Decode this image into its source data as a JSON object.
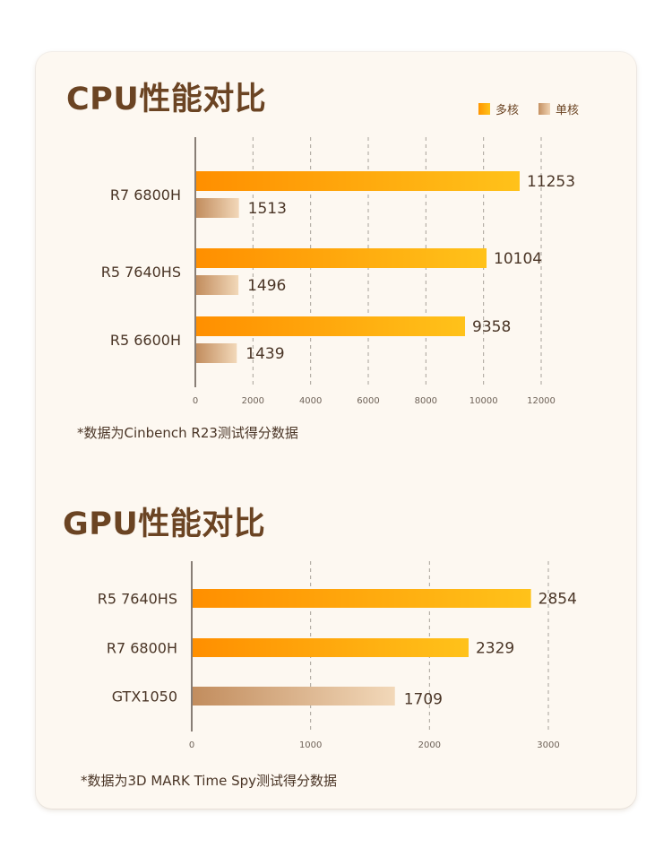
{
  "cpu": {
    "title": "CPU性能对比",
    "legend": [
      {
        "name": "多核",
        "color": "#ff9f0a"
      },
      {
        "name": "单核",
        "color": "#d9a77a"
      }
    ],
    "note": "*数据为Cinbench R23测试得分数据"
  },
  "gpu": {
    "title": "GPU性能对比",
    "note": "*数据为3D MARK Time Spy测试得分数据"
  },
  "chart_data": [
    {
      "type": "bar",
      "orientation": "horizontal",
      "title": "CPU性能对比",
      "categories": [
        "R7 6800H",
        "R5 7640HS",
        "R5 6600H"
      ],
      "series": [
        {
          "name": "多核",
          "values": [
            11253,
            10104,
            9358
          ]
        },
        {
          "name": "单核",
          "values": [
            1513,
            1496,
            1439
          ]
        }
      ],
      "xlim": [
        0,
        12000
      ],
      "xticks": [
        "0",
        "2000",
        "4000",
        "6000",
        "8000",
        "10000",
        "12000"
      ],
      "grid": true,
      "legend_position": "top-right"
    },
    {
      "type": "bar",
      "orientation": "horizontal",
      "title": "GPU性能对比",
      "categories": [
        "R5 7640HS",
        "R7 6800H",
        "GTX1050"
      ],
      "values": [
        2854,
        2329,
        1709
      ],
      "bar_styles": [
        "orange",
        "orange",
        "tan"
      ],
      "xlim": [
        0,
        3000
      ],
      "xticks": [
        "0",
        "1000",
        "2000",
        "3000"
      ],
      "grid": true
    }
  ]
}
